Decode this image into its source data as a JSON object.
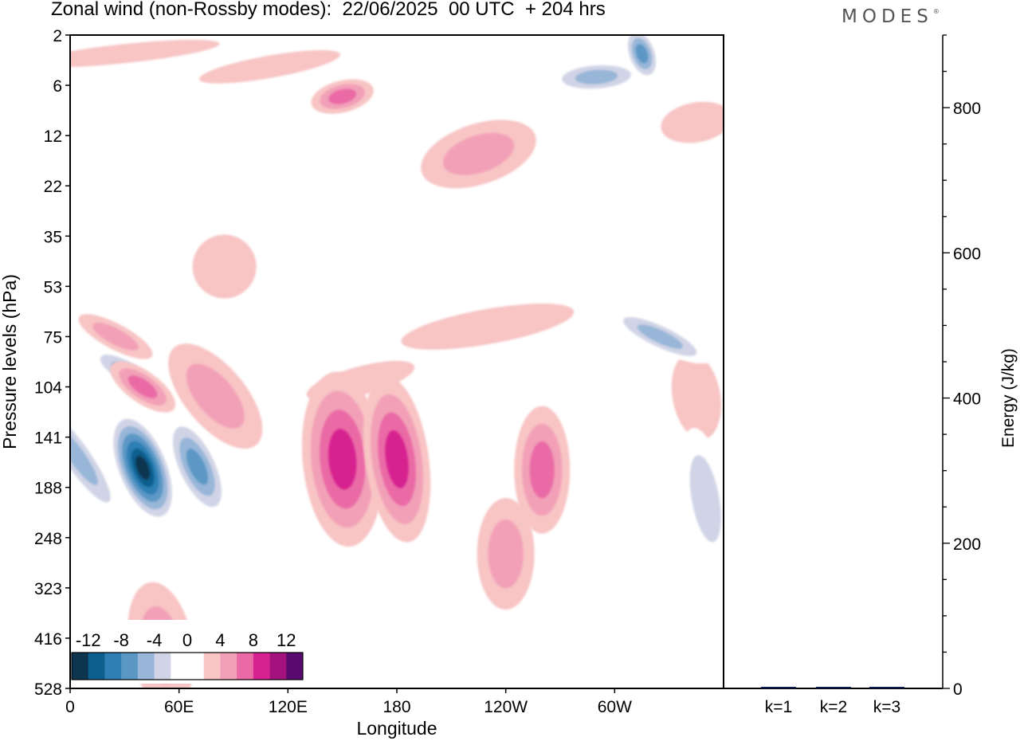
{
  "title": "Zonal wind (non-Rossby modes):  22/06/2025  00 UTC  + 204 hrs",
  "logo": "MODES",
  "logo_mark": "®",
  "chart_data": [
    {
      "type": "heatmap",
      "title": "Zonal wind (non-Rossby modes):  22/06/2025  00 UTC  + 204 hrs",
      "xlabel": "Longitude",
      "ylabel": "Pressure levels (hPa)",
      "x_ticks": [
        "0",
        "60E",
        "120E",
        "180",
        "120W",
        "60W"
      ],
      "y_ticks": [
        "2",
        "6",
        "12",
        "22",
        "35",
        "53",
        "75",
        "104",
        "141",
        "188",
        "248",
        "323",
        "416",
        "528"
      ],
      "colorbar": {
        "labels": [
          "-12",
          "-8",
          "-4",
          "0",
          "4",
          "8",
          "12"
        ],
        "levels": [
          -14,
          -12,
          -10,
          -8,
          -6,
          -4,
          -2,
          0,
          2,
          4,
          6,
          8,
          10,
          12,
          14
        ],
        "colors": [
          "#0d3550",
          "#0d5f8e",
          "#2f7fb4",
          "#5b97c5",
          "#98b6d8",
          "#d0d4e6",
          "#ffffff",
          "#ffffff",
          "#f8c4c4",
          "#f2a0b8",
          "#ea6aa6",
          "#d6238f",
          "#a4127e",
          "#5a0a6e"
        ]
      },
      "features": [
        {
          "lon": 40,
          "level": "168",
          "value": -14
        },
        {
          "lon": 70,
          "level": "167",
          "value": -8
        },
        {
          "lon": 4,
          "level": "158",
          "value": -6
        },
        {
          "lon": 32,
          "level": "95",
          "value": -6
        },
        {
          "lon": 40,
          "level": "104",
          "value": 6
        },
        {
          "lon": 25,
          "level": "75",
          "value": 4
        },
        {
          "lon": 150,
          "level": "160",
          "value": 8
        },
        {
          "lon": 180,
          "level": "160",
          "value": 8
        },
        {
          "lon": 260,
          "level": "170",
          "value": 6
        },
        {
          "lon": 350,
          "level": "200",
          "value": -4
        },
        {
          "lon": 325,
          "level": "75",
          "value": -6
        },
        {
          "lon": 290,
          "level": "5",
          "value": -6
        },
        {
          "lon": 315,
          "level": "3",
          "value": -8
        },
        {
          "lon": 225,
          "level": "15",
          "value": 4
        },
        {
          "lon": 150,
          "level": "7",
          "value": 6
        },
        {
          "lon": 80,
          "level": "110",
          "value": 6
        },
        {
          "lon": 50,
          "level": "430",
          "value": 4
        },
        {
          "lon": 240,
          "level": "270",
          "value": 4
        }
      ]
    },
    {
      "type": "bar",
      "categories": [
        "k=1",
        "k=2",
        "k=3"
      ],
      "values": [
        2,
        1,
        1
      ],
      "ylabel": "Energy (J/kg)",
      "ylim": [
        0,
        900
      ],
      "y_major_ticks": [
        "0",
        "200",
        "400",
        "600",
        "800"
      ],
      "bar_color": "#0d1a4f"
    }
  ]
}
